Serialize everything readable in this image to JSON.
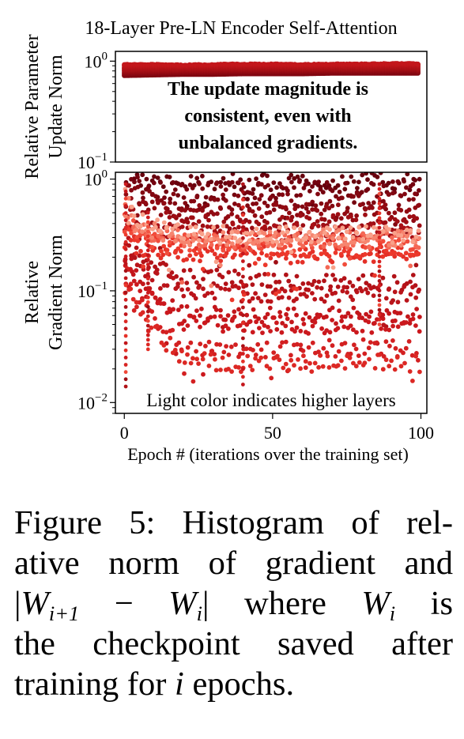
{
  "figure": {
    "chart_data": [
      {
        "type": "scatter",
        "panel": "top",
        "title": "18-Layer Pre-LN  Encoder Self-Attention",
        "ylabel_line1": "Relative Parameter",
        "ylabel_line2": "Update Norm",
        "yscale": "log",
        "ylim": [
          0.1,
          1.25
        ],
        "xlim": [
          -3,
          102
        ],
        "yticks": [
          {
            "value": 1.0,
            "base": "10",
            "exp": "0"
          },
          {
            "value": 0.1,
            "base": "10",
            "exp": "−1"
          }
        ],
        "annotation": [
          "The update magnitude is",
          "consistent,  even with",
          "unbalanced gradients."
        ],
        "series": [
          {
            "values_x": [
              0,
              10,
              20,
              30,
              40,
              50,
              60,
              70,
              80,
              90,
              99
            ],
            "values_y_low": [
              0.72,
              0.73,
              0.74,
              0.74,
              0.75,
              0.75,
              0.75,
              0.76,
              0.76,
              0.76,
              0.76
            ],
            "values_y_high": [
              0.93,
              0.93,
              0.92,
              0.93,
              0.94,
              0.94,
              0.93,
              0.94,
              0.94,
              0.95,
              0.95
            ]
          }
        ]
      },
      {
        "type": "scatter",
        "panel": "bottom",
        "ylabel_line1": "Relative",
        "ylabel_line2": "Gradient Norm",
        "xlabel": "Epoch # (iterations over the training set)",
        "yscale": "log",
        "ylim": [
          0.008,
          1.15
        ],
        "xlim": [
          -3,
          102
        ],
        "xticks": [
          0,
          50,
          100
        ],
        "yticks": [
          {
            "value": 1.0,
            "base": "10",
            "exp": "0"
          },
          {
            "value": 0.1,
            "base": "10",
            "exp": "−1"
          },
          {
            "value": 0.01,
            "base": "10",
            "exp": "−2"
          }
        ],
        "annotation": "Light color indicates higher layers",
        "series": [
          {
            "layer": 1,
            "values_y": [
              0.95,
              0.93,
              0.94,
              0.95,
              0.96,
              0.95
            ]
          },
          {
            "layer": 2,
            "values_y": [
              0.82,
              0.78,
              0.8,
              0.8,
              0.81,
              0.8
            ]
          },
          {
            "layer": 3,
            "values_y": [
              0.68,
              0.62,
              0.63,
              0.62,
              0.64,
              0.63
            ]
          },
          {
            "layer": 4,
            "values_y": [
              0.55,
              0.5,
              0.5,
              0.5,
              0.51,
              0.5
            ]
          },
          {
            "layer": 5,
            "values_y": [
              0.45,
              0.41,
              0.4,
              0.4,
              0.41,
              0.41
            ]
          },
          {
            "layer": 6,
            "values_y": [
              0.33,
              0.34,
              0.33,
              0.33,
              0.33,
              0.34
            ]
          },
          {
            "layer": 7,
            "values_y": [
              0.2,
              0.13,
              0.13,
              0.12,
              0.12,
              0.12
            ]
          },
          {
            "layer": 8,
            "values_y": [
              0.18,
              0.098,
              0.095,
              0.094,
              0.092,
              0.092
            ]
          },
          {
            "layer": 9,
            "values_y": [
              0.15,
              0.062,
              0.061,
              0.06,
              0.06,
              0.061
            ]
          },
          {
            "layer": 10,
            "values_y": [
              0.12,
              0.052,
              0.05,
              0.049,
              0.05,
              0.05
            ]
          },
          {
            "layer": 11,
            "values_y": [
              0.1,
              0.032,
              0.03,
              0.03,
              0.031,
              0.03
            ]
          },
          {
            "layer": 12,
            "values_y": [
              0.08,
              0.024,
              0.022,
              0.022,
              0.023,
              0.022
            ]
          },
          {
            "layer": 13,
            "values_y": [
              0.25,
              0.22,
              0.21,
              0.21,
              0.21,
              0.21
            ]
          },
          {
            "layer": 14,
            "values_y": [
              0.28,
              0.25,
              0.24,
              0.24,
              0.24,
              0.24
            ]
          },
          {
            "layer": 15,
            "values_y": [
              0.3,
              0.27,
              0.27,
              0.27,
              0.27,
              0.27
            ]
          },
          {
            "layer": 16,
            "values_y": [
              0.35,
              0.29,
              0.29,
              0.29,
              0.29,
              0.29
            ]
          },
          {
            "layer": 17,
            "values_y": [
              0.4,
              0.3,
              0.3,
              0.3,
              0.3,
              0.3
            ]
          },
          {
            "layer": 18,
            "values_y": [
              0.45,
              0.32,
              0.32,
              0.32,
              0.32,
              0.32
            ]
          }
        ],
        "series_x": [
          0,
          20,
          40,
          60,
          80,
          100
        ]
      }
    ],
    "colors": {
      "darkest": "#67000d",
      "dark": "#a50f15",
      "mid": "#cb181d",
      "light": "#ef3b2c",
      "lightest": "#fcbba1"
    }
  },
  "caption": {
    "l1": "Figure 5: Histogram of rel-",
    "l2": "ative norm of gradient and",
    "l3_bar_open": "|",
    "l3_W1": "W",
    "l3_sub1": "i+1",
    "l3_minus": "−",
    "l3_W2": "W",
    "l3_sub2": "i",
    "l3_bar_close": "|",
    "l3_where": "where",
    "l3_W3": "W",
    "l3_sub3": "i",
    "l3_is": "is",
    "l4": "the checkpoint saved after",
    "l5_a": "training for ",
    "l5_i": "i",
    "l5_b": " epochs."
  }
}
